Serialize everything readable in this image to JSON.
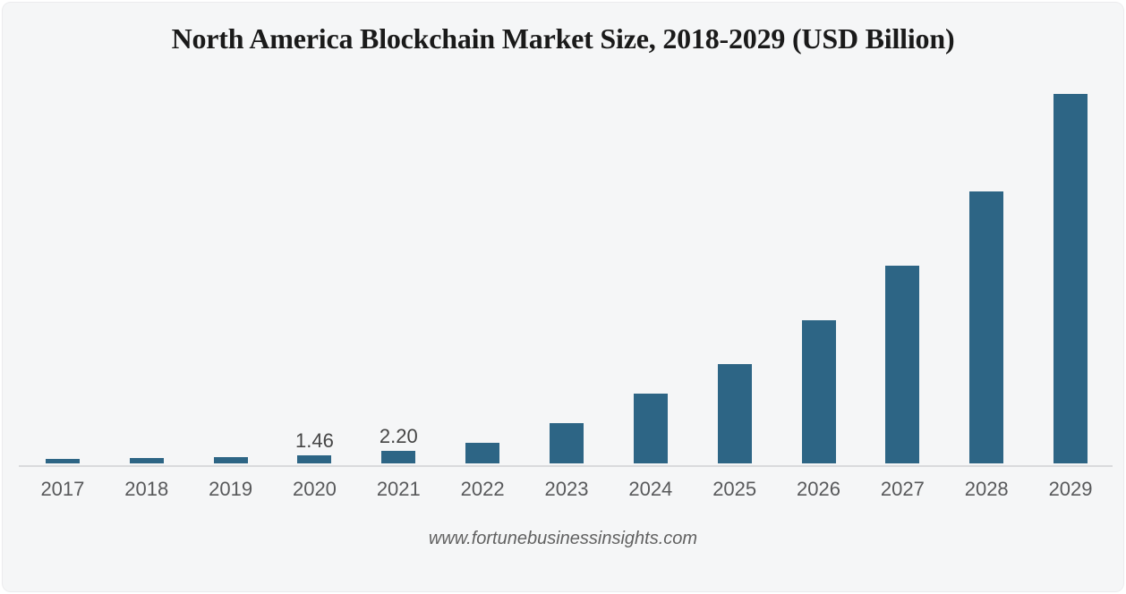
{
  "page": {
    "title": "North America Blockchain Market Size, 2018-2029 (USD Billion)",
    "source_url": "www.fortunebusinessinsights.com"
  },
  "colors": {
    "background": "#f5f6f7",
    "bar": "#2d6585",
    "axis_line": "#d9dadc",
    "title_text": "#1a1a1a",
    "tick_text": "#58595b",
    "data_label_text": "#454545",
    "footer_text": "#616161"
  },
  "chart_data": {
    "type": "bar",
    "title": "North America Blockchain Market Size, 2018-2029 (USD Billion)",
    "xlabel": "",
    "ylabel": "",
    "categories": [
      "2017",
      "2018",
      "2019",
      "2020",
      "2021",
      "2022",
      "2023",
      "2024",
      "2025",
      "2026",
      "2027",
      "2028",
      "2029"
    ],
    "values": [
      0.85,
      1.0,
      1.12,
      1.46,
      2.2,
      3.65,
      7.1,
      12.2,
      17.5,
      25.1,
      34.7,
      47.8,
      64.9
    ],
    "bar_labels": [
      "",
      "",
      "",
      "1.46",
      "2.20",
      "",
      "",
      "",
      "",
      "",
      "",
      "",
      ""
    ],
    "ylim": [
      0,
      66
    ],
    "y_axis_visible": false,
    "grid": false,
    "legend": "none",
    "note": "Only the 2020 (1.46) and 2021 (2.20) bars carry printed data labels; all other values are estimated from bar heights."
  }
}
